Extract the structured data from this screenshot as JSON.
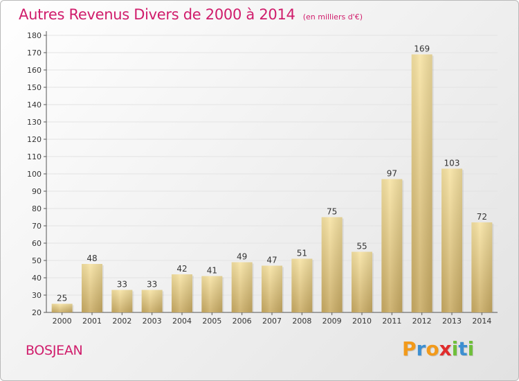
{
  "chart_data": {
    "type": "bar",
    "title": "Autres Revenus Divers de 2000 à 2014",
    "subtitle": "(en milliers d'€)",
    "xlabel": "",
    "ylabel": "",
    "categories": [
      "2000",
      "2001",
      "2002",
      "2003",
      "2004",
      "2005",
      "2006",
      "2007",
      "2008",
      "2009",
      "2010",
      "2011",
      "2012",
      "2013",
      "2014"
    ],
    "values": [
      25,
      48,
      33,
      33,
      42,
      41,
      49,
      47,
      51,
      75,
      55,
      97,
      169,
      103,
      72
    ],
    "ylim": [
      20,
      180
    ],
    "yticks": [
      20,
      30,
      40,
      50,
      60,
      70,
      80,
      90,
      100,
      110,
      120,
      130,
      140,
      150,
      160,
      170,
      180
    ],
    "grid": true,
    "legend": "none",
    "bar_color_top": "#f7e3a3",
    "bar_color_bottom": "#c9ab63",
    "title_color": "#d01c6b"
  },
  "footer": {
    "commune": "BOSJEAN",
    "logo_letters": [
      {
        "char": "P",
        "color": "#f29a1b"
      },
      {
        "char": "r",
        "color": "#3d8fd1"
      },
      {
        "char": "o",
        "color": "#f29a1b"
      },
      {
        "char": "x",
        "color": "#e02c2c"
      },
      {
        "char": "i",
        "color": "#6fbf3a"
      },
      {
        "char": "t",
        "color": "#3d8fd1"
      },
      {
        "char": "i",
        "color": "#6fbf3a"
      }
    ]
  }
}
